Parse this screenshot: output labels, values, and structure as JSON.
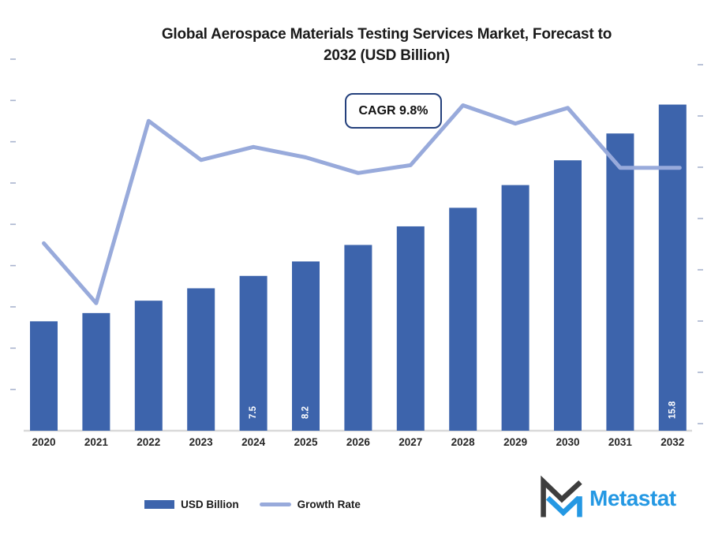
{
  "title": {
    "line1": "Global Aerospace Materials Testing Services Market, Forecast to",
    "line2": "2032 (USD Billion)"
  },
  "logo": {
    "text": "Metastat"
  },
  "colors": {
    "bar": "#3d64ac",
    "line": "#98aadb",
    "cagr_border": "#24407c",
    "baseline": "#d9d9d9",
    "tick": "#a9b4cf",
    "bar_label_text": "#ffffff",
    "logo_blue": "#2498e3",
    "logo_dark": "#3d3d3d",
    "title_text": "#1a1a1a"
  },
  "chart_data": {
    "type": "combo",
    "title": "Global Aerospace Materials Testing Services Market, Forecast to 2032 (USD Billion)",
    "xlabel": "",
    "ylabel": "",
    "categories": [
      "2020",
      "2021",
      "2022",
      "2023",
      "2024",
      "2025",
      "2026",
      "2027",
      "2028",
      "2029",
      "2030",
      "2031",
      "2032"
    ],
    "series": [
      {
        "name": "USD Billion",
        "chart_type": "bar",
        "values": [
          5.3,
          5.7,
          6.3,
          6.9,
          7.5,
          8.2,
          9.0,
          9.9,
          10.8,
          11.9,
          13.1,
          14.4,
          15.8
        ],
        "data_labels": [
          "",
          "",
          "",
          "",
          "7.5",
          "8.2",
          "",
          "",
          "",
          "",
          "",
          "",
          "15.8"
        ]
      },
      {
        "name": "Growth Rate",
        "chart_type": "line",
        "unit": "%",
        "values": [
          7.2,
          4.9,
          11.9,
          10.4,
          10.9,
          10.5,
          9.9,
          10.2,
          12.5,
          11.8,
          12.4,
          10.1,
          10.1
        ]
      }
    ],
    "annotation": "CAGR 9.8%",
    "y_left_axis": {
      "range": [
        0,
        18
      ],
      "tick_step": 2,
      "labels_visible": false
    },
    "y_right_axis": {
      "range": [
        0,
        14
      ],
      "tick_step": 2,
      "labels_visible": false
    },
    "grid": false,
    "legend_position": "bottom"
  }
}
